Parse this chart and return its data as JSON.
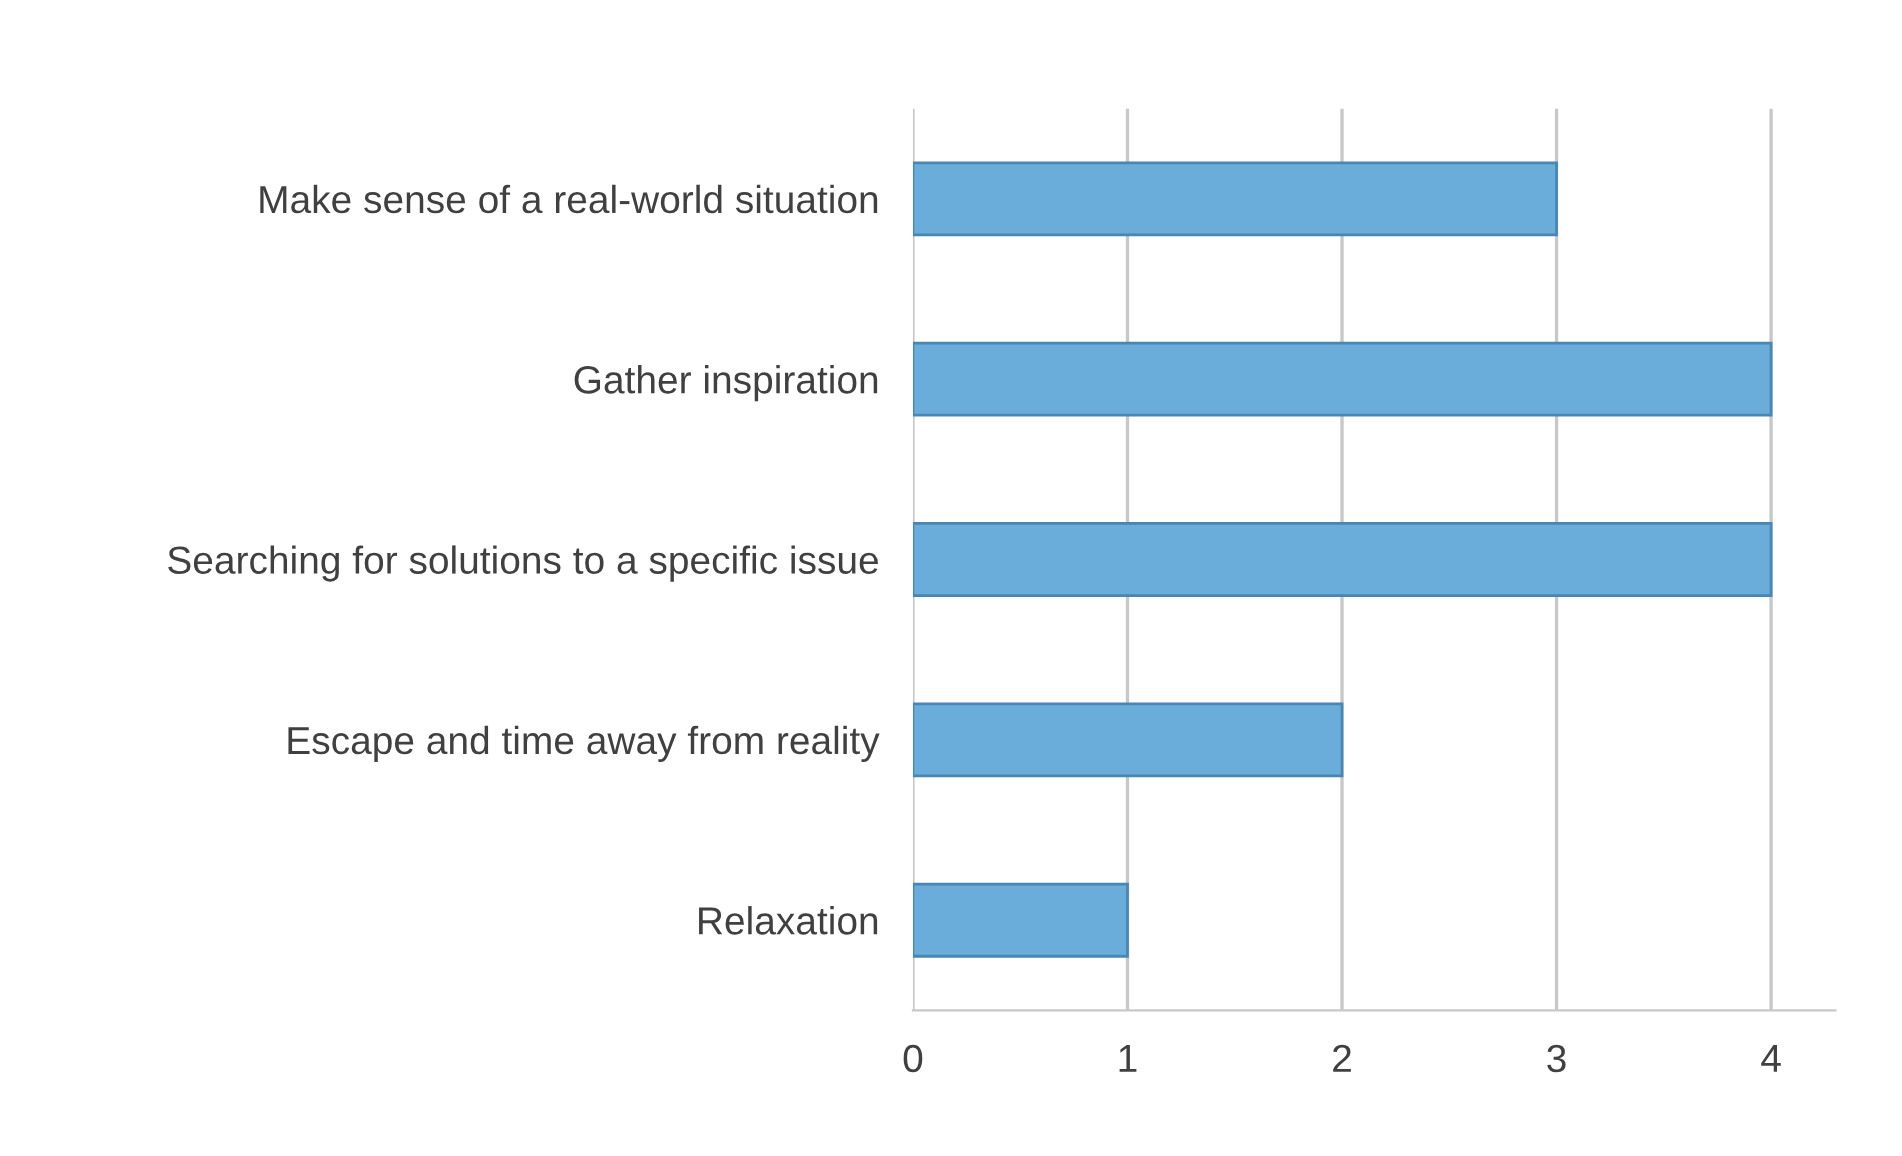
{
  "chart_data": {
    "type": "bar",
    "orientation": "horizontal",
    "categories": [
      "Make sense of a real-world situation",
      "Gather inspiration",
      "Searching for solutions to a specific issue",
      "Escape and time away from reality",
      "Relaxation"
    ],
    "values": [
      3,
      4,
      4,
      2,
      1
    ],
    "color": "#6aaddb",
    "xlim": [
      0,
      4.3
    ],
    "xticks": [
      0,
      1,
      2,
      3,
      4
    ],
    "grid": "x",
    "legend": false
  }
}
